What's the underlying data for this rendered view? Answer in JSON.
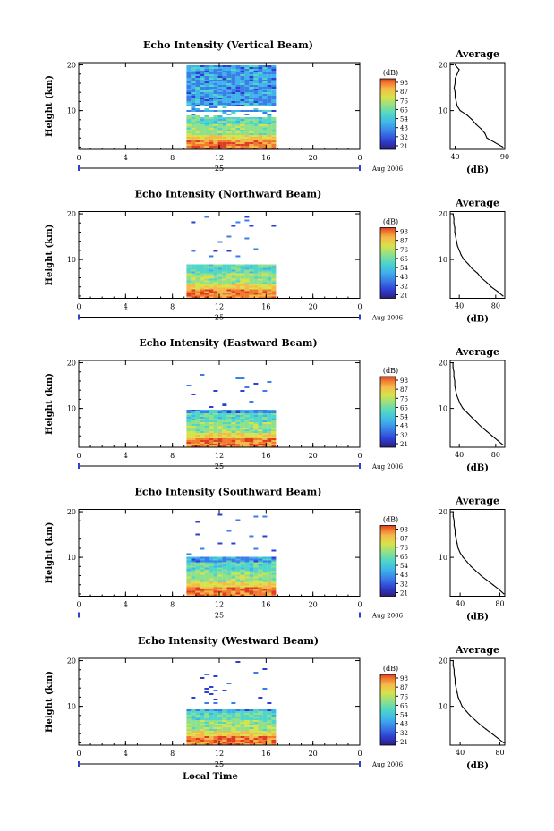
{
  "chart_data": [
    {
      "type": "heatmap",
      "title": "Echo Intensity (Vertical Beam)",
      "ylabel": "Height (km)",
      "xlabel": "",
      "x_ticks": [
        "0",
        "4",
        "8",
        "12",
        "16",
        "20",
        "0"
      ],
      "y_ticks": [
        "10",
        "20"
      ],
      "xlim": [
        0,
        24
      ],
      "ylim": [
        1.5,
        20.5
      ],
      "date_label": "25",
      "month_label": "Aug 2006",
      "data_hours": [
        9.2,
        16.8
      ],
      "clear_layers_km": [
        [
          8.8,
          9.8
        ],
        [
          10.4,
          11.0
        ]
      ],
      "strong_layer_km": [
        1.5,
        3.5
      ],
      "colorbar": {
        "unit": "(dB)",
        "ticks": [
          "98",
          "87",
          "76",
          "65",
          "54",
          "43",
          "32",
          "21"
        ]
      },
      "profile": {
        "title": "Average",
        "x_ticks": [
          "40",
          "90"
        ],
        "y_ticks": [
          "10",
          "20"
        ],
        "xlabel": "(dB)",
        "xlim": [
          35,
          90
        ],
        "heights": [
          2,
          3,
          4,
          5,
          6,
          7,
          8,
          9,
          10,
          11,
          12,
          13,
          14,
          15,
          16,
          17,
          18,
          19,
          20
        ],
        "values": [
          88,
          80,
          72,
          70,
          66,
          61,
          57,
          52,
          45,
          42,
          41,
          40,
          40,
          39,
          40,
          40,
          42,
          44,
          40
        ]
      }
    },
    {
      "type": "heatmap",
      "title": "Echo Intensity (Northward Beam)",
      "ylabel": "Height (km)",
      "xlabel": "",
      "x_ticks": [
        "0",
        "4",
        "8",
        "12",
        "16",
        "20",
        "0"
      ],
      "y_ticks": [
        "10",
        "20"
      ],
      "xlim": [
        0,
        24
      ],
      "ylim": [
        1.5,
        20.5
      ],
      "date_label": "25",
      "month_label": "Aug 2006",
      "data_hours": [
        9.2,
        16.8
      ],
      "data_top_km": 9.2,
      "strong_layer_km": [
        1.5,
        3.5
      ],
      "colorbar": {
        "unit": "(dB)",
        "ticks": [
          "98",
          "87",
          "76",
          "65",
          "54",
          "43",
          "32",
          "21"
        ]
      },
      "profile": {
        "title": "Average",
        "x_ticks": [
          "40",
          "80"
        ],
        "y_ticks": [
          "10",
          "20"
        ],
        "xlabel": "(dB)",
        "xlim": [
          30,
          90
        ],
        "heights": [
          2,
          3,
          4,
          5,
          6,
          7,
          8,
          9,
          10,
          11,
          12,
          13,
          14,
          15,
          16,
          17,
          18,
          19,
          20
        ],
        "values": [
          88,
          82,
          75,
          70,
          64,
          60,
          54,
          50,
          45,
          42,
          40,
          38,
          37,
          36,
          35,
          35,
          34,
          34,
          33
        ]
      }
    },
    {
      "type": "heatmap",
      "title": "Echo Intensity (Eastward Beam)",
      "ylabel": "Height (km)",
      "xlabel": "",
      "x_ticks": [
        "0",
        "4",
        "8",
        "12",
        "16",
        "20",
        "0"
      ],
      "y_ticks": [
        "10",
        "20"
      ],
      "xlim": [
        0,
        24
      ],
      "ylim": [
        1.5,
        20.5
      ],
      "date_label": "25",
      "month_label": "Aug 2006",
      "data_hours": [
        9.2,
        16.8
      ],
      "data_top_km": 10.0,
      "strong_layer_km": [
        1.5,
        3.5
      ],
      "colorbar": {
        "unit": "(dB)",
        "ticks": [
          "98",
          "87",
          "76",
          "65",
          "54",
          "43",
          "32",
          "21"
        ]
      },
      "profile": {
        "title": "Average",
        "x_ticks": [
          "40",
          "80"
        ],
        "y_ticks": [
          "10",
          "20"
        ],
        "xlabel": "(dB)",
        "xlim": [
          30,
          90
        ],
        "heights": [
          2,
          3,
          4,
          5,
          6,
          7,
          8,
          9,
          10,
          11,
          12,
          13,
          14,
          15,
          16,
          17,
          18,
          19,
          20
        ],
        "values": [
          88,
          82,
          76,
          70,
          64,
          59,
          54,
          49,
          44,
          41,
          39,
          37,
          36,
          35,
          35,
          34,
          34,
          33,
          33
        ]
      }
    },
    {
      "type": "heatmap",
      "title": "Echo Intensity (Southward Beam)",
      "ylabel": "Height (km)",
      "xlabel": "",
      "x_ticks": [
        "0",
        "4",
        "8",
        "12",
        "16",
        "20",
        "0"
      ],
      "y_ticks": [
        "10",
        "20"
      ],
      "xlim": [
        0,
        24
      ],
      "ylim": [
        1.5,
        20.5
      ],
      "date_label": "25",
      "month_label": "Aug 2006",
      "data_hours": [
        9.2,
        16.8
      ],
      "data_top_km": 10.2,
      "strong_layer_km": [
        1.5,
        3.5
      ],
      "colorbar": {
        "unit": "(dB)",
        "ticks": [
          "98",
          "87",
          "76",
          "65",
          "54",
          "43",
          "32",
          "21"
        ]
      },
      "profile": {
        "title": "Average",
        "x_ticks": [
          "40",
          "80"
        ],
        "y_ticks": [
          "10",
          "20"
        ],
        "xlabel": "(dB)",
        "xlim": [
          30,
          85
        ],
        "heights": [
          2,
          3,
          4,
          5,
          6,
          7,
          8,
          9,
          10,
          11,
          12,
          13,
          14,
          15,
          16,
          17,
          18,
          19,
          20
        ],
        "values": [
          84,
          79,
          73,
          67,
          61,
          56,
          51,
          47,
          43,
          40,
          38,
          37,
          36,
          35,
          35,
          34,
          34,
          33,
          33
        ]
      }
    },
    {
      "type": "heatmap",
      "title": "Echo Intensity (Westward Beam)",
      "ylabel": "Height (km)",
      "xlabel": "Local Time",
      "x_ticks": [
        "0",
        "4",
        "8",
        "12",
        "16",
        "20",
        "0"
      ],
      "y_ticks": [
        "10",
        "20"
      ],
      "xlim": [
        0,
        24
      ],
      "ylim": [
        1.5,
        20.5
      ],
      "date_label": "25",
      "month_label": "Aug 2006",
      "data_hours": [
        9.2,
        16.8
      ],
      "data_top_km": 9.5,
      "strong_layer_km": [
        1.5,
        3.5
      ],
      "colorbar": {
        "unit": "(dB)",
        "ticks": [
          "98",
          "87",
          "76",
          "65",
          "54",
          "43",
          "32",
          "21"
        ]
      },
      "profile": {
        "title": "Average",
        "x_ticks": [
          "40",
          "80"
        ],
        "y_ticks": [
          "10",
          "20"
        ],
        "xlabel": "(dB)",
        "xlim": [
          30,
          85
        ],
        "heights": [
          2,
          3,
          4,
          5,
          6,
          7,
          8,
          9,
          10,
          11,
          12,
          13,
          14,
          15,
          16,
          17,
          18,
          19,
          20
        ],
        "values": [
          84,
          78,
          72,
          66,
          60,
          55,
          50,
          46,
          42,
          40,
          38,
          37,
          36,
          35,
          35,
          34,
          34,
          33,
          33
        ]
      }
    }
  ],
  "colors": {
    "scale": [
      "#2d1e7a",
      "#2f3fd2",
      "#3a7ee8",
      "#3fb3ea",
      "#4fd6c8",
      "#8fe08a",
      "#d8e24a",
      "#f5b84a",
      "#f07a2e",
      "#e03c24"
    ],
    "axis": "#000000"
  }
}
